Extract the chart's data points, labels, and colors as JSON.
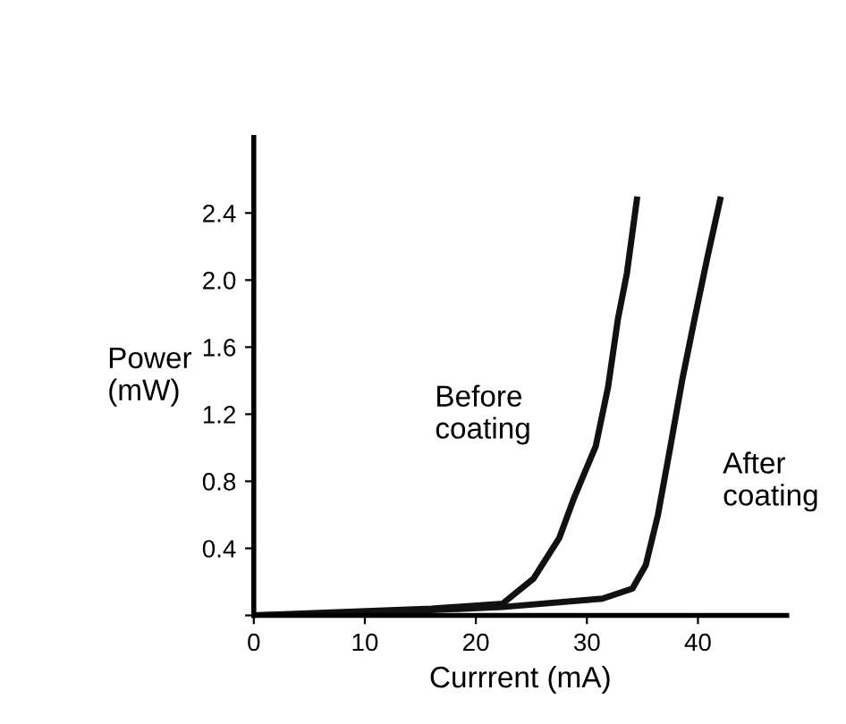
{
  "chart_data": {
    "type": "line",
    "xlabel": "Currrent (mA)",
    "ylabel": "Power\n(mW)",
    "series": [
      {
        "x": [
          0,
          8,
          16,
          22.4,
          25.2,
          27.5,
          28.9,
          30.8,
          31.9,
          32.8,
          33.6,
          34.5
        ],
        "values": [
          0,
          0.02,
          0.04,
          0.07,
          0.22,
          0.46,
          0.71,
          1.01,
          1.36,
          1.77,
          2.04,
          2.48
        ],
        "color": "#111111"
      },
      {
        "x": [
          0,
          8.5,
          22.4,
          31.4,
          34.1,
          35.3,
          36.4,
          37.5,
          38.6,
          39.7,
          40.8,
          42
        ],
        "values": [
          0,
          0.01,
          0.05,
          0.1,
          0.16,
          0.3,
          0.6,
          1.0,
          1.41,
          1.77,
          2.12,
          2.48
        ],
        "color": "#111111"
      }
    ],
    "annotations": [
      "Before\ncoating",
      "After\ncoating"
    ],
    "xlim": [
      0,
      48
    ],
    "ylim": [
      0,
      2.85
    ],
    "xticks": [
      0,
      10,
      20,
      30,
      40
    ],
    "yticks": [
      {
        "value": 0,
        "label": null
      },
      0.4,
      0.8,
      1.2,
      1.6,
      {
        "value": 2.0,
        "label": "2.0"
      },
      2.4
    ],
    "grid": false,
    "marker": "none",
    "line_style": "solid"
  }
}
